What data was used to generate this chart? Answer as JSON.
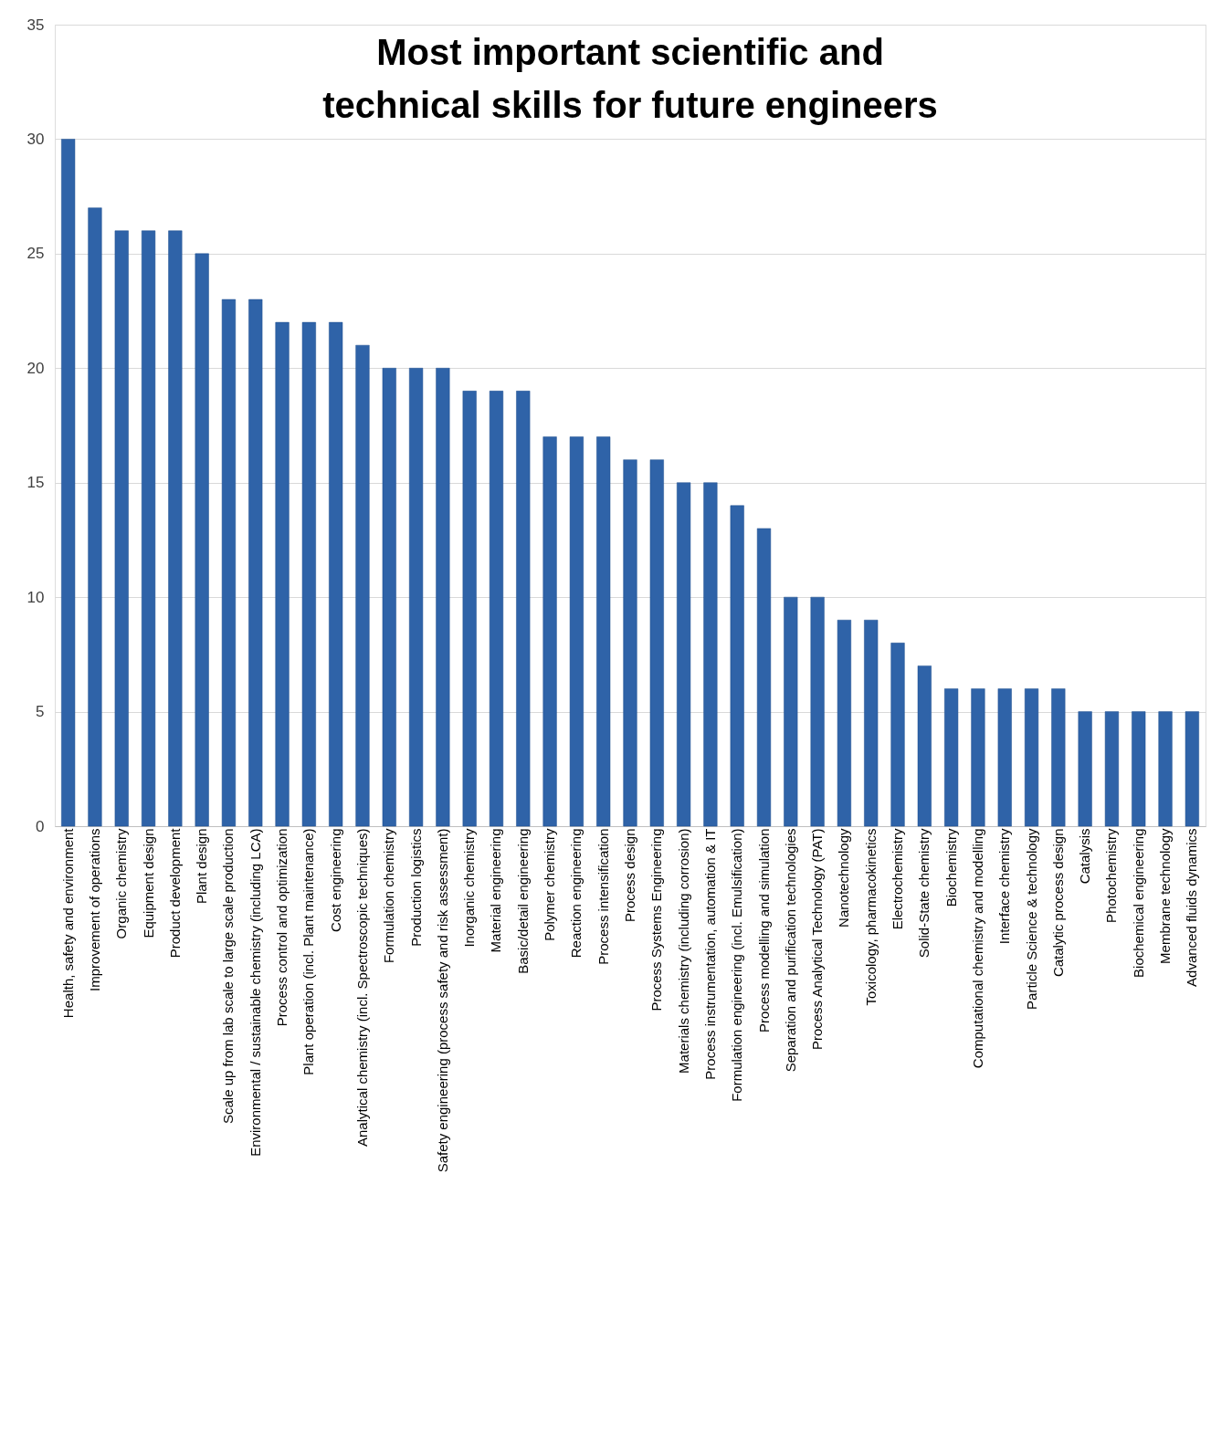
{
  "chart_data": {
    "type": "bar",
    "title": "Most important scientific and technical skills for future engineers",
    "categories": [
      "Health, safety and environment",
      "Improvement of operations",
      "Organic chemistry",
      "Equipment design",
      "Product development",
      "Plant design",
      "Scale up from lab scale to large scale production",
      "Environmental / sustainable chemistry (including LCA)",
      "Process control and optimization",
      "Plant operation (incl. Plant maintenance)",
      "Cost engineering",
      "Analytical chemistry (incl. Spectroscopic techniques)",
      "Formulation chemistry",
      "Production logistics",
      "Safety engineering (process safety and risk assessment)",
      "Inorganic chemistry",
      "Material engineering",
      "Basic/detail engineering",
      "Polymer chemistry",
      "Reaction engineering",
      "Process intensification",
      "Process design",
      "Process Systems Engineering",
      "Materials chemistry (including corrosion)",
      "Process instrumentation, automation & IT",
      "Formulation engineering (incl. Emulsification)",
      "Process modelling and simulation",
      "Separation and purification technologies",
      "Process Analytical Technology (PAT)",
      "Nanotechnology",
      "Toxicology, pharmacokinetics",
      "Electrochemistry",
      "Solid-State chemistry",
      "Biochemistry",
      "Computational chemistry and modelling",
      "Interface chemistry",
      "Particle Science & technology",
      "Catalytic process design",
      "Catalysis",
      "Photochemistry",
      "Biochemical engineering",
      "Membrane technology",
      "Advanced fluids dynamics"
    ],
    "values": [
      30,
      27,
      26,
      26,
      26,
      25,
      23,
      23,
      22,
      22,
      22,
      21,
      20,
      20,
      20,
      19,
      19,
      19,
      17,
      17,
      17,
      16,
      16,
      15,
      15,
      14,
      13,
      10,
      10,
      9,
      9,
      8,
      7,
      6,
      6,
      6,
      6,
      6,
      5,
      5,
      5,
      5,
      5
    ],
    "color": "#2f63a8",
    "ylim": [
      0,
      35
    ],
    "yticks": [
      0,
      5,
      10,
      15,
      20,
      25,
      30,
      35
    ],
    "grid": "y"
  }
}
